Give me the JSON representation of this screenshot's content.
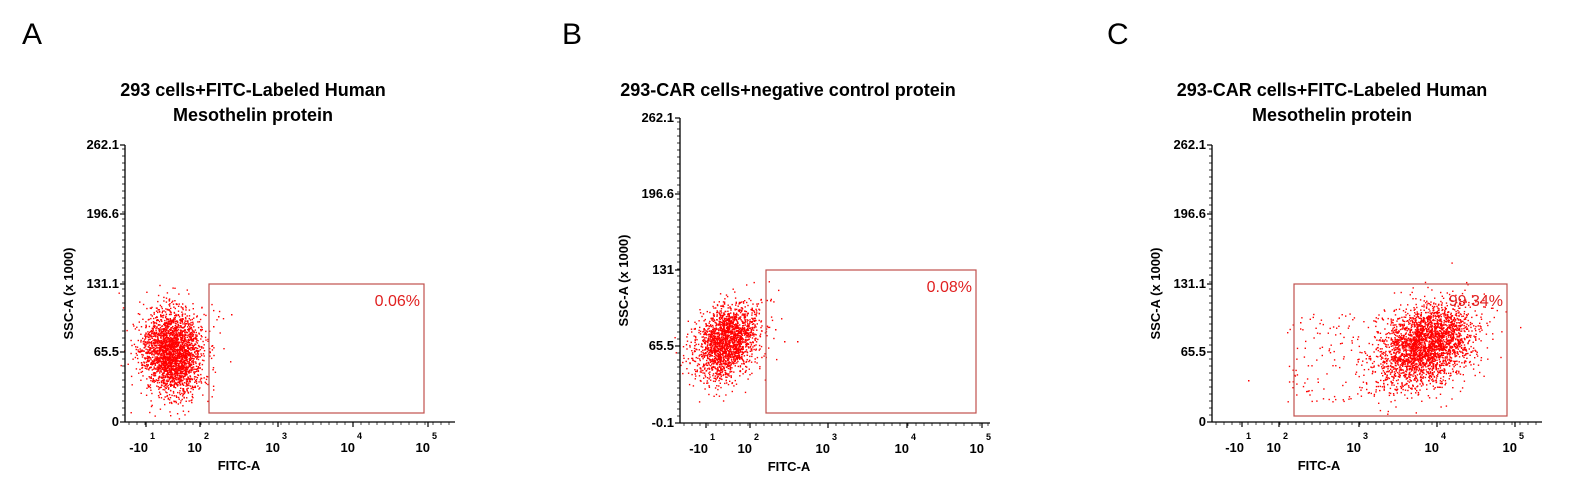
{
  "chart_data": [
    {
      "type": "scatter",
      "panel_label": "A",
      "title_lines": [
        "293 cells+FITC-Labeled Human",
        "Mesothelin protein"
      ],
      "xlabel": "FITC-A",
      "ylabel": "SSC-A (x 1000)",
      "y_ticks": [
        "0",
        "65.5",
        "131.1",
        "196.6",
        "262.1"
      ],
      "ylim": [
        0,
        262.1
      ],
      "x_ticks": [
        {
          "base": "-10",
          "exp": "1"
        },
        {
          "base": "10",
          "exp": "2"
        },
        {
          "base": "10",
          "exp": "3"
        },
        {
          "base": "10",
          "exp": "4"
        },
        {
          "base": "10",
          "exp": "5"
        }
      ],
      "x_scale": "biexponential",
      "gate": {
        "x_range": [
          150,
          100000
        ],
        "y_range": [
          6,
          131.1
        ],
        "label": "0.06%"
      },
      "population": {
        "x_center": 0.55,
        "y_center": 70,
        "color": "#ff0000",
        "description_cells": "main cluster"
      }
    },
    {
      "type": "scatter",
      "panel_label": "B",
      "title_lines": [
        "293-CAR cells+negative control protein"
      ],
      "xlabel": "FITC-A",
      "ylabel": "SSC-A (x 1000)",
      "y_ticks": [
        "-0.1",
        "65.5",
        "131",
        "196.6",
        "262.1"
      ],
      "ylim": [
        -0.1,
        262.1
      ],
      "x_ticks": [
        {
          "base": "-10",
          "exp": "1"
        },
        {
          "base": "10",
          "exp": "2"
        },
        {
          "base": "10",
          "exp": "3"
        },
        {
          "base": "10",
          "exp": "4"
        },
        {
          "base": "10",
          "exp": "5"
        }
      ],
      "x_scale": "biexponential",
      "gate": {
        "x_range": [
          150,
          100000
        ],
        "y_range": [
          6,
          131
        ],
        "label": "0.08%"
      },
      "population": {
        "x_center": 0.55,
        "y_center": 62,
        "color": "#ff0000"
      }
    },
    {
      "type": "scatter",
      "panel_label": "C",
      "title_lines": [
        "293-CAR cells+FITC-Labeled Human",
        "Mesothelin protein"
      ],
      "xlabel": "FITC-A",
      "ylabel": "SSC-A (x 1000)",
      "y_ticks": [
        "0",
        "65.5",
        "131.1",
        "196.6",
        "262.1"
      ],
      "ylim": [
        0,
        262.1
      ],
      "x_ticks": [
        {
          "base": "-10",
          "exp": "1"
        },
        {
          "base": "10",
          "exp": "2"
        },
        {
          "base": "10",
          "exp": "3"
        },
        {
          "base": "10",
          "exp": "4"
        },
        {
          "base": "10",
          "exp": "5"
        }
      ],
      "x_scale": "biexponential",
      "gate": {
        "x_range": [
          150,
          100000
        ],
        "y_range": [
          6,
          131.1
        ],
        "label": "99.34%"
      },
      "population": {
        "x_center": 3.6,
        "y_center": 75,
        "color": "#ff0000"
      }
    }
  ]
}
